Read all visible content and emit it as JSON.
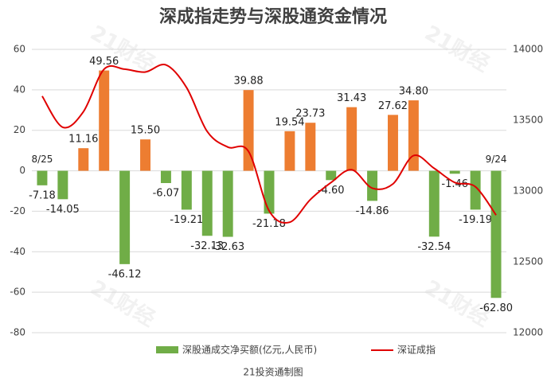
{
  "chart_data": {
    "type": "bar_line",
    "title": "深成指走势与深股通资金情况",
    "source": "21投资通制图",
    "watermark": "21财经",
    "categories": [
      "8/25",
      null,
      null,
      null,
      null,
      null,
      null,
      null,
      null,
      null,
      null,
      null,
      null,
      null,
      null,
      null,
      null,
      null,
      null,
      null,
      null,
      null,
      "9/24"
    ],
    "series": [
      {
        "name": "深股通成交净买额(亿元,人民币)",
        "type": "bar",
        "color": "#70ad47",
        "positive_color": "#ed7d31",
        "values": [
          -7.18,
          -14.05,
          11.16,
          49.56,
          -46.12,
          15.5,
          -6.07,
          -19.21,
          -32.13,
          -32.63,
          39.88,
          -21.18,
          19.54,
          23.73,
          -4.6,
          31.43,
          -14.86,
          27.62,
          34.8,
          -32.54,
          -1.46,
          -19.19,
          -62.8
        ],
        "value_labels": [
          "-7.18",
          "-14.05",
          "11.16",
          "49.56",
          "-46.12",
          "15.50",
          "-6.07",
          "-19.21",
          "-32.13",
          "-32.63",
          "39.88",
          "-21.18",
          "19.54",
          "23.73",
          "-4.60",
          "31.43",
          "-14.86",
          "27.62",
          "34.80",
          "-32.54",
          "-1.46",
          "-19.19",
          "-62.80"
        ]
      },
      {
        "name": "深证成指",
        "type": "line",
        "color": "#e00000",
        "axis": "y2",
        "values": [
          13670,
          13450,
          13560,
          13860,
          13860,
          13840,
          13890,
          13730,
          13420,
          13310,
          13280,
          12860,
          12780,
          12940,
          13060,
          13150,
          13020,
          13050,
          13250,
          13160,
          13060,
          13030,
          12830
        ]
      }
    ],
    "ylim": [
      -80,
      60
    ],
    "yticks": [
      -80,
      -60,
      -40,
      -20,
      0,
      20,
      40,
      60
    ],
    "y2lim": [
      12000,
      14000
    ],
    "y2ticks": [
      12000,
      12500,
      13000,
      13500,
      14000
    ],
    "grid": true
  }
}
